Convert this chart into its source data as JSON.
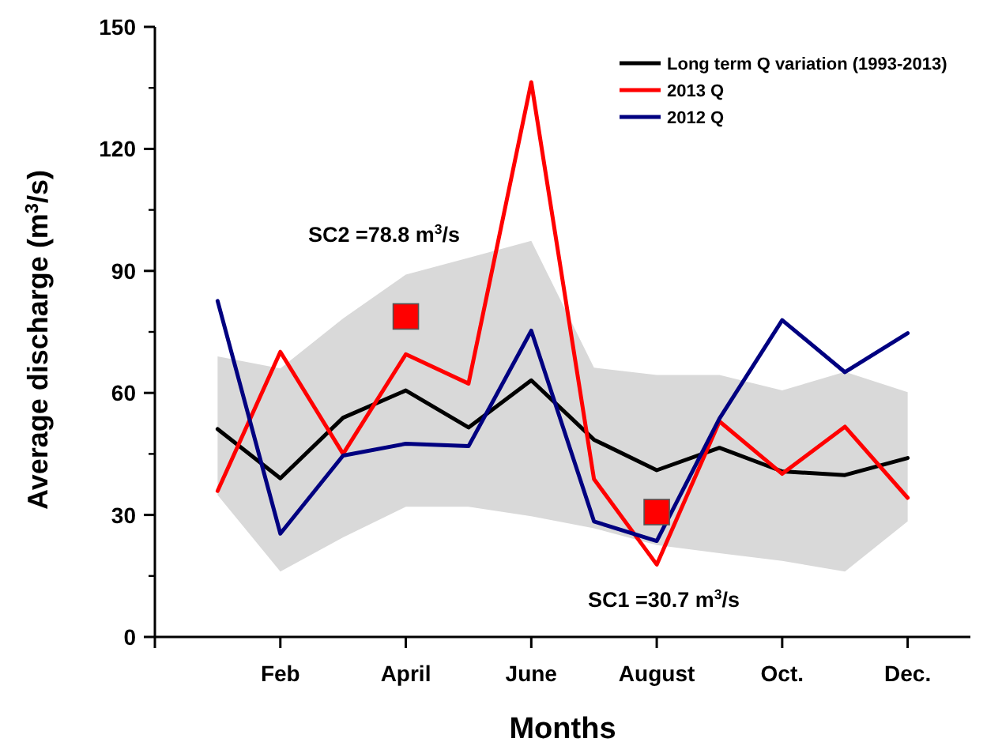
{
  "chart_data": {
    "type": "line",
    "xlabel": "Months",
    "ylabel": "Average discharge (m$^{3}$/s)",
    "categories": [
      null,
      "Feb",
      null,
      "April",
      null,
      "June",
      null,
      "August",
      null,
      "Oct.",
      null,
      "Dec."
    ],
    "ylim": [
      0,
      150
    ],
    "yticks": [
      0,
      30,
      60,
      90,
      120,
      150
    ],
    "series": [
      {
        "name": "Long term Q variation (1993-2013)",
        "color": "#000000",
        "values": [
          51.1,
          39.0,
          53.9,
          60.6,
          51.5,
          63.1,
          48.5,
          41.0,
          46.5,
          40.7,
          39.8,
          44.0
        ],
        "lower": [
          34.9,
          16.1,
          24.5,
          32.0,
          32.0,
          29.7,
          26.7,
          22.6,
          20.6,
          18.7,
          16.1,
          28.4
        ],
        "upper": [
          69.0,
          66.0,
          78.3,
          89.1,
          93.2,
          97.4,
          66.2,
          64.4,
          64.4,
          60.6,
          65.2,
          60.2
        ]
      },
      {
        "name": "2013 Q",
        "color": "#ff0000",
        "values": [
          35.9,
          70.1,
          45.0,
          69.5,
          62.3,
          136.4,
          38.8,
          17.8,
          53.0,
          40.1,
          51.7,
          34.2
        ]
      },
      {
        "name": "2012 Q",
        "color": "#000080",
        "values": [
          82.6,
          25.4,
          44.6,
          47.5,
          46.9,
          75.3,
          28.4,
          23.6,
          53.7,
          77.9,
          65.1,
          74.7
        ]
      },
      {
        "type": "scatter",
        "marker": "square",
        "color": "#ff0000",
        "x": [
          "April",
          "August"
        ],
        "values": [
          78.8,
          30.7
        ]
      }
    ],
    "annotations": [
      "SC2 =78.8 m$^{3}$/s",
      "SC1 =30.7 m$^{3}$/s"
    ],
    "legend": "top right",
    "grid": false
  }
}
